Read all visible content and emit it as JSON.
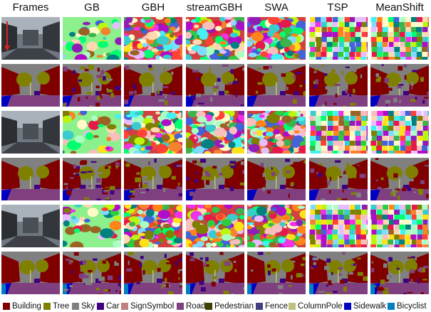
{
  "columns": [
    "Frames",
    "GB",
    "GBH",
    "streamGBH",
    "SWA",
    "TSP",
    "MeanShift"
  ],
  "legend": [
    {
      "label": "Building",
      "color": "#800000"
    },
    {
      "label": "Tree",
      "color": "#808000"
    },
    {
      "label": "Sky",
      "color": "#808080"
    },
    {
      "label": "Car",
      "color": "#400080"
    },
    {
      "label": "SignSymbol",
      "color": "#c08080"
    },
    {
      "label": "Road",
      "color": "#804080"
    },
    {
      "label": "Pedestrian",
      "color": "#404000"
    },
    {
      "label": "Fence",
      "color": "#404080"
    },
    {
      "label": "ColumnPole",
      "color": "#c0c080"
    },
    {
      "label": "Sidewalk",
      "color": "#0000c0"
    },
    {
      "label": "Bicyclist",
      "color": "#0080c0"
    }
  ]
}
